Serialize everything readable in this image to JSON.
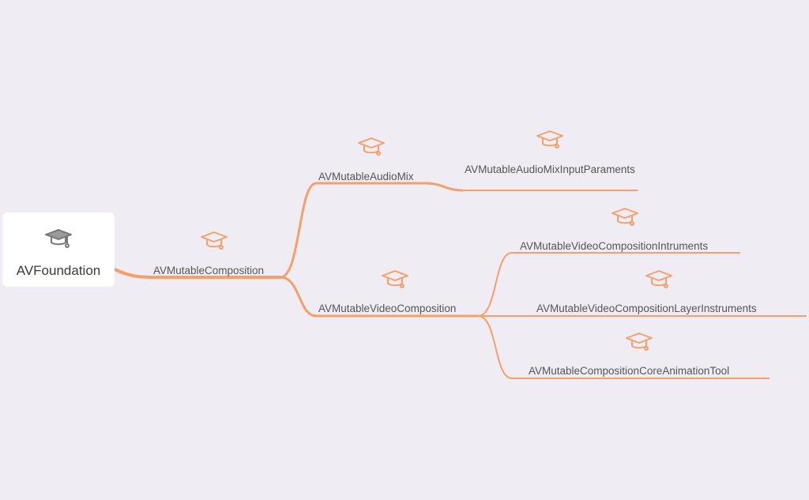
{
  "root": {
    "label": "AVFoundation",
    "icon": "graduation-cap-icon",
    "icon_color": "#777777"
  },
  "branch_color": "#f5a06b",
  "icon_color": "#f5a06b",
  "nodes": {
    "composition": {
      "label": "AVMutableComposition",
      "icon": "graduation-cap-icon"
    },
    "audio_mix": {
      "label": "AVMutableAudioMix",
      "icon": "graduation-cap-icon"
    },
    "audio_mix_input": {
      "label": "AVMutableAudioMixInputParaments",
      "icon": "graduation-cap-icon"
    },
    "video_composition": {
      "label": "AVMutableVideoComposition",
      "icon": "graduation-cap-icon"
    },
    "video_instruments": {
      "label": "AVMutableVideoCompositionIntruments",
      "icon": "graduation-cap-icon"
    },
    "video_layer_instruments": {
      "label": "AVMutableVideoCompositionLayerInstruments",
      "icon": "graduation-cap-icon"
    },
    "core_animation_tool": {
      "label": "AVMutableCompositionCoreAnimationTool",
      "icon": "graduation-cap-icon"
    }
  }
}
